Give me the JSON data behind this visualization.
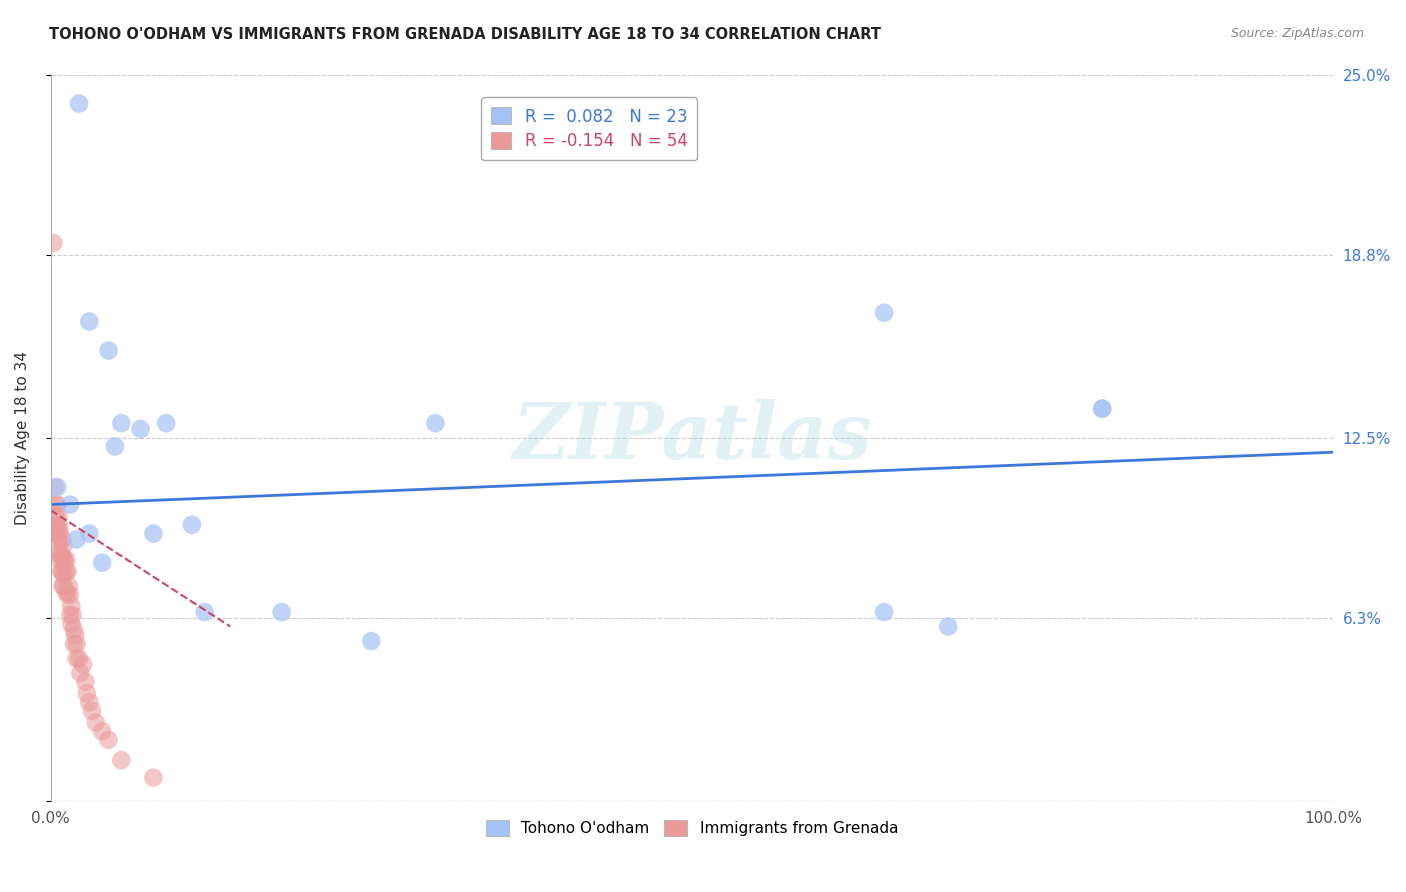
{
  "title": "TOHONO O'ODHAM VS IMMIGRANTS FROM GRENADA DISABILITY AGE 18 TO 34 CORRELATION CHART",
  "source": "Source: ZipAtlas.com",
  "ylabel": "Disability Age 18 to 34",
  "xlim": [
    0,
    1.0
  ],
  "ylim": [
    0,
    0.25
  ],
  "xticks": [
    0.0,
    0.25,
    0.5,
    0.75,
    1.0
  ],
  "xticklabels": [
    "0.0%",
    "",
    "",
    "",
    "100.0%"
  ],
  "ytick_positions": [
    0.0,
    0.063,
    0.125,
    0.188,
    0.25
  ],
  "yticklabels": [
    "",
    "6.3%",
    "12.5%",
    "18.8%",
    "25.0%"
  ],
  "grid_color": "#cccccc",
  "watermark": "ZIPatlas",
  "legend_R1": "R =  0.082",
  "legend_N1": "N = 23",
  "legend_R2": "R = -0.154",
  "legend_N2": "N = 54",
  "blue_color": "#a4c2f4",
  "pink_color": "#ea9999",
  "blue_line_color": "#3c78d8",
  "pink_line_color": "#cc4466",
  "blue_scatter_x": [
    0.022,
    0.03,
    0.045,
    0.055,
    0.07,
    0.09,
    0.12,
    0.18,
    0.25,
    0.65,
    0.7,
    0.82,
    0.005,
    0.015,
    0.02,
    0.03,
    0.04,
    0.05,
    0.08,
    0.11,
    0.3,
    0.65,
    0.82
  ],
  "blue_scatter_y": [
    0.24,
    0.165,
    0.155,
    0.13,
    0.128,
    0.13,
    0.065,
    0.065,
    0.055,
    0.168,
    0.06,
    0.135,
    0.108,
    0.102,
    0.09,
    0.092,
    0.082,
    0.122,
    0.092,
    0.095,
    0.13,
    0.065,
    0.135
  ],
  "pink_scatter_x": [
    0.002,
    0.003,
    0.003,
    0.004,
    0.004,
    0.005,
    0.005,
    0.006,
    0.006,
    0.006,
    0.006,
    0.007,
    0.007,
    0.007,
    0.008,
    0.008,
    0.008,
    0.009,
    0.009,
    0.009,
    0.009,
    0.01,
    0.01,
    0.01,
    0.01,
    0.011,
    0.012,
    0.012,
    0.012,
    0.013,
    0.013,
    0.014,
    0.015,
    0.015,
    0.016,
    0.016,
    0.017,
    0.018,
    0.018,
    0.019,
    0.02,
    0.02,
    0.022,
    0.023,
    0.025,
    0.027,
    0.028,
    0.03,
    0.032,
    0.035,
    0.04,
    0.045,
    0.055,
    0.08
  ],
  "pink_scatter_y": [
    0.192,
    0.108,
    0.095,
    0.102,
    0.098,
    0.102,
    0.094,
    0.098,
    0.092,
    0.085,
    0.095,
    0.093,
    0.089,
    0.083,
    0.09,
    0.085,
    0.079,
    0.09,
    0.084,
    0.079,
    0.074,
    0.088,
    0.083,
    0.078,
    0.074,
    0.082,
    0.083,
    0.079,
    0.072,
    0.079,
    0.071,
    0.074,
    0.071,
    0.064,
    0.067,
    0.061,
    0.064,
    0.059,
    0.054,
    0.057,
    0.054,
    0.049,
    0.049,
    0.044,
    0.047,
    0.041,
    0.037,
    0.034,
    0.031,
    0.027,
    0.024,
    0.021,
    0.014,
    0.008
  ],
  "blue_trend_x": [
    0.0,
    1.0
  ],
  "blue_trend_y": [
    0.102,
    0.12
  ],
  "pink_trend_x": [
    0.0,
    0.14
  ],
  "pink_trend_y": [
    0.1,
    0.06
  ]
}
